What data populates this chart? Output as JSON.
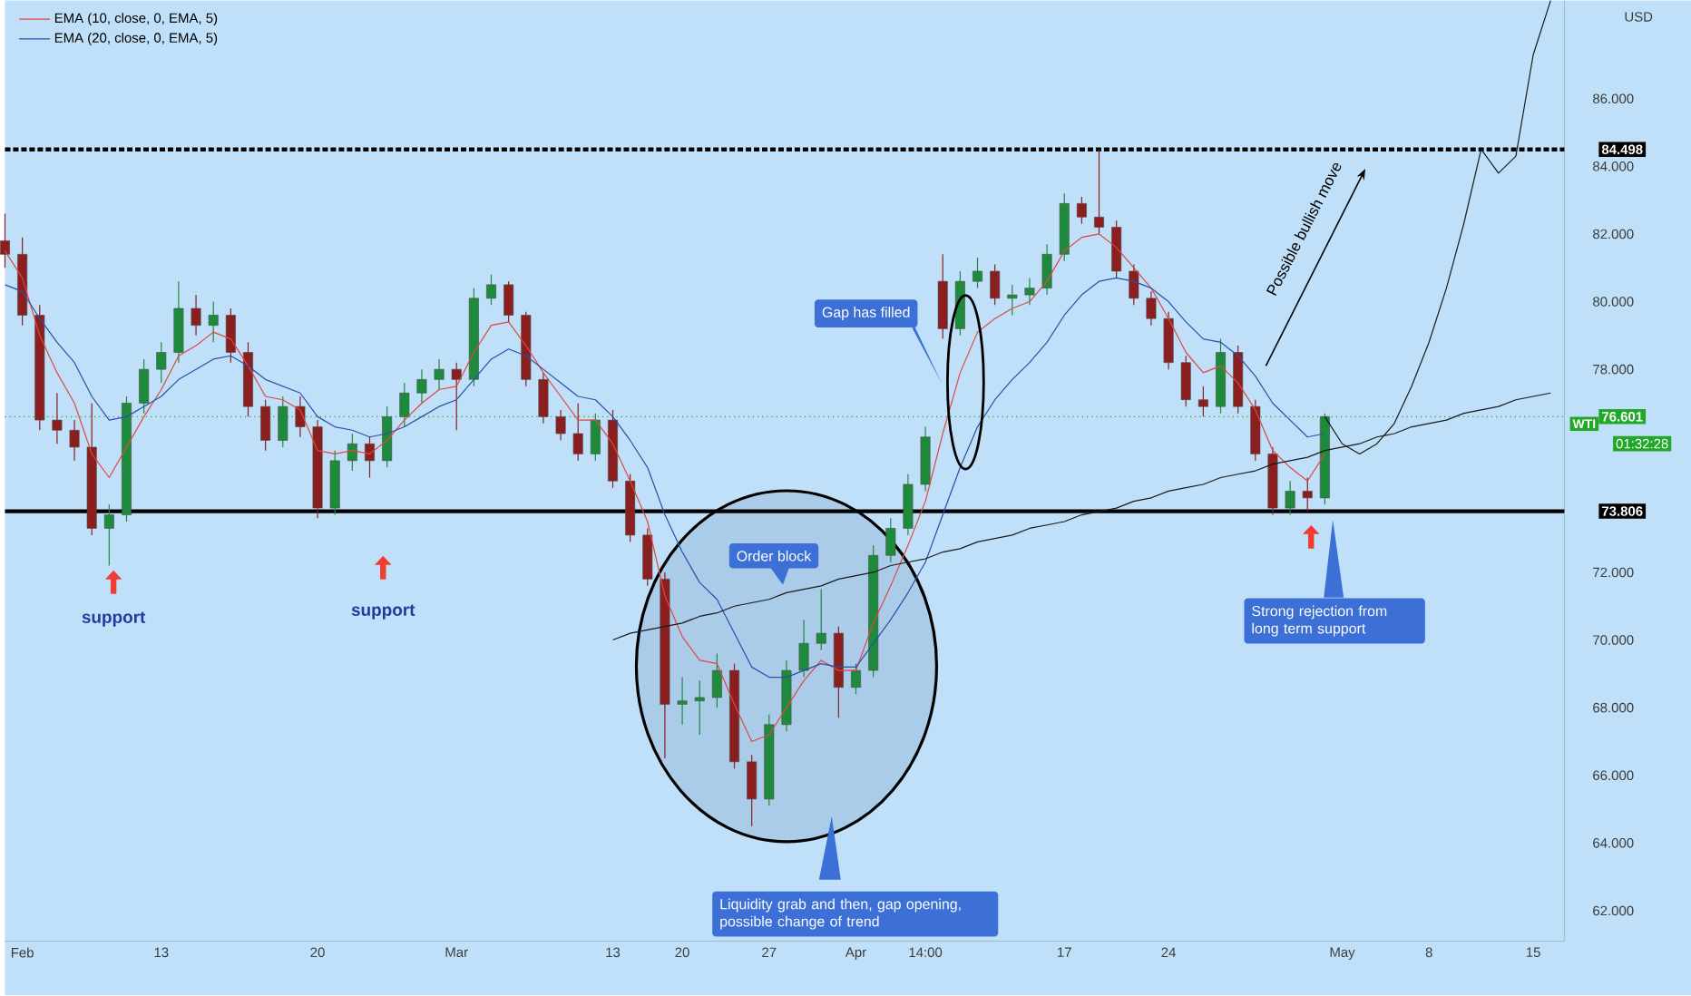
{
  "chart_data": {
    "type": "candlestick",
    "ylabel": "USD",
    "categories": [
      null,
      "Feb",
      null,
      null,
      null,
      null,
      null,
      null,
      null,
      "13",
      null,
      null,
      null,
      null,
      null,
      null,
      null,
      null,
      "20",
      null,
      null,
      null,
      null,
      null,
      null,
      null,
      "Mar",
      null,
      null,
      null,
      null,
      null,
      null,
      null,
      null,
      "13",
      null,
      null,
      null,
      "20",
      null,
      null,
      null,
      null,
      "27",
      null,
      null,
      null,
      null,
      "Apr",
      null,
      null,
      null,
      "14:00",
      null,
      null,
      null,
      null,
      null,
      null,
      null,
      "17",
      null,
      null,
      null,
      null,
      null,
      "24",
      null,
      null,
      null,
      null,
      null,
      null,
      null,
      null,
      null,
      "May",
      null,
      null,
      null,
      null,
      "8",
      null,
      null,
      null,
      null,
      null,
      "15",
      null
    ],
    "ylim": [
      61.1,
      88.9
    ],
    "yticks": [
      {
        "value": 62,
        "label": "62.000"
      },
      {
        "value": 64,
        "label": "64.000"
      },
      {
        "value": 66,
        "label": "66.000"
      },
      {
        "value": 68,
        "label": "68.000"
      },
      {
        "value": 70,
        "label": "70.000"
      },
      {
        "value": 72,
        "label": "72.000"
      },
      {
        "value": 78,
        "label": "78.000"
      },
      {
        "value": 80,
        "label": "80.000"
      },
      {
        "value": 82,
        "label": "82.000"
      },
      {
        "value": 84,
        "label": "84.000"
      },
      {
        "value": 86,
        "label": "86.000"
      }
    ],
    "legend": "top left",
    "series": [
      {
        "ohlc": [
          [
            81.8,
            82.6,
            81.0,
            81.4
          ],
          [
            81.4,
            81.9,
            79.3,
            79.6
          ],
          [
            79.6,
            79.9,
            76.2,
            76.5
          ],
          [
            76.5,
            77.3,
            75.8,
            76.2
          ],
          [
            76.2,
            76.5,
            75.3,
            75.7
          ],
          [
            75.7,
            77.0,
            73.1,
            73.3
          ],
          [
            73.3,
            74.0,
            72.2,
            73.7
          ],
          [
            73.7,
            77.2,
            73.5,
            77.0
          ],
          [
            77.0,
            78.3,
            76.7,
            78.0
          ],
          [
            78.0,
            78.8,
            77.6,
            78.5
          ],
          [
            78.5,
            80.6,
            78.2,
            79.8
          ],
          [
            79.8,
            80.2,
            79.0,
            79.3
          ],
          [
            79.3,
            80.0,
            78.8,
            79.6
          ],
          [
            79.6,
            79.8,
            78.2,
            78.5
          ],
          [
            78.5,
            78.8,
            76.6,
            76.9
          ],
          [
            76.9,
            77.1,
            75.6,
            75.9
          ],
          [
            75.9,
            77.2,
            75.7,
            76.9
          ],
          [
            76.9,
            77.2,
            76.0,
            76.3
          ],
          [
            76.3,
            76.5,
            73.6,
            73.9
          ],
          [
            73.9,
            75.6,
            73.7,
            75.3
          ],
          [
            75.3,
            76.1,
            75.0,
            75.8
          ],
          [
            75.8,
            76.0,
            74.8,
            75.3
          ],
          [
            75.3,
            76.9,
            75.1,
            76.6
          ],
          [
            76.6,
            77.6,
            76.3,
            77.3
          ],
          [
            77.3,
            78.0,
            77.0,
            77.7
          ],
          [
            77.7,
            78.3,
            77.4,
            78.0
          ],
          [
            78.0,
            78.2,
            76.2,
            77.7
          ],
          [
            77.7,
            80.4,
            77.5,
            80.1
          ],
          [
            80.1,
            80.8,
            79.9,
            80.5
          ],
          [
            80.5,
            80.6,
            79.4,
            79.6
          ],
          [
            79.6,
            79.7,
            77.5,
            77.7
          ],
          [
            77.7,
            77.9,
            76.4,
            76.6
          ],
          [
            76.6,
            76.8,
            75.9,
            76.1
          ],
          [
            76.1,
            77.0,
            75.3,
            75.5
          ],
          [
            75.5,
            76.7,
            75.3,
            76.5
          ],
          [
            76.5,
            76.8,
            74.5,
            74.7
          ],
          [
            74.7,
            74.9,
            72.9,
            73.1
          ],
          [
            73.1,
            73.3,
            71.6,
            71.8
          ],
          [
            71.8,
            72.0,
            66.5,
            68.1
          ],
          [
            68.1,
            68.9,
            67.5,
            68.2
          ],
          [
            68.2,
            68.8,
            67.2,
            68.3
          ],
          [
            68.3,
            69.6,
            68.0,
            69.1
          ],
          [
            69.1,
            69.3,
            66.2,
            66.4
          ],
          [
            66.4,
            66.6,
            64.5,
            65.3
          ],
          [
            65.3,
            67.8,
            65.1,
            67.5
          ],
          [
            67.5,
            69.4,
            67.3,
            69.1
          ],
          [
            69.1,
            70.6,
            68.9,
            69.9
          ],
          [
            69.9,
            71.5,
            69.7,
            70.2
          ],
          [
            70.2,
            70.4,
            67.7,
            68.6
          ],
          [
            68.6,
            69.3,
            68.4,
            69.1
          ],
          [
            69.1,
            72.8,
            68.9,
            72.5
          ],
          [
            72.5,
            73.6,
            72.3,
            73.3
          ],
          [
            73.3,
            74.9,
            73.1,
            74.6
          ],
          [
            74.6,
            76.3,
            74.4,
            76.0
          ],
          [
            80.6,
            81.4,
            78.9,
            79.2
          ],
          [
            79.2,
            80.9,
            79.0,
            80.6
          ],
          [
            80.6,
            81.3,
            80.4,
            80.9
          ],
          [
            80.9,
            81.1,
            79.9,
            80.1
          ],
          [
            80.1,
            80.5,
            79.6,
            80.2
          ],
          [
            80.2,
            80.7,
            79.9,
            80.4
          ],
          [
            80.4,
            81.7,
            80.2,
            81.4
          ],
          [
            81.4,
            83.2,
            81.2,
            82.9
          ],
          [
            82.9,
            83.1,
            82.3,
            82.5
          ],
          [
            82.5,
            84.5,
            82.0,
            82.2
          ],
          [
            82.2,
            82.4,
            80.7,
            80.9
          ],
          [
            80.9,
            81.1,
            79.9,
            80.1
          ],
          [
            80.1,
            80.3,
            79.3,
            79.5
          ],
          [
            79.5,
            79.7,
            78.0,
            78.2
          ],
          [
            78.2,
            78.4,
            76.9,
            77.1
          ],
          [
            77.1,
            77.5,
            76.6,
            76.9
          ],
          [
            76.9,
            78.9,
            76.7,
            78.5
          ],
          [
            78.5,
            78.7,
            76.7,
            76.9
          ],
          [
            76.9,
            77.1,
            75.3,
            75.5
          ],
          [
            75.5,
            75.7,
            73.7,
            73.9
          ],
          [
            73.9,
            74.7,
            73.7,
            74.4
          ],
          [
            74.4,
            74.8,
            73.8,
            74.2
          ],
          [
            74.2,
            76.7,
            74.0,
            76.601
          ],
          null,
          null,
          null,
          null,
          null,
          null,
          null,
          null,
          null,
          null,
          null,
          null,
          null
        ],
        "colors": [
          "#8b1e1e",
          "#8b1e1e",
          "#8b1e1e",
          "#8b1e1e",
          "#8b1e1e",
          "#8b1e1e",
          "#1e8a3c",
          "#1e8a3c",
          "#1e8a3c",
          "#1e8a3c",
          "#1e8a3c",
          "#8b1e1e",
          "#1e8a3c",
          "#8b1e1e",
          "#8b1e1e",
          "#8b1e1e",
          "#1e8a3c",
          "#8b1e1e",
          "#8b1e1e",
          "#1e8a3c",
          "#1e8a3c",
          "#8b1e1e",
          "#1e8a3c",
          "#1e8a3c",
          "#1e8a3c",
          "#1e8a3c",
          "#8b1e1e",
          "#1e8a3c",
          "#1e8a3c",
          "#8b1e1e",
          "#8b1e1e",
          "#8b1e1e",
          "#8b1e1e",
          "#8b1e1e",
          "#1e8a3c",
          "#8b1e1e",
          "#8b1e1e",
          "#8b1e1e",
          "#8b1e1e",
          "#1e8a3c",
          "#1e8a3c",
          "#1e8a3c",
          "#8b1e1e",
          "#8b1e1e",
          "#1e8a3c",
          "#1e8a3c",
          "#1e8a3c",
          "#1e8a3c",
          "#8b1e1e",
          "#1e8a3c",
          "#1e8a3c",
          "#1e8a3c",
          "#1e8a3c",
          "#1e8a3c",
          "#8b1e1e",
          "#1e8a3c",
          "#1e8a3c",
          "#8b1e1e",
          "#1e8a3c",
          "#1e8a3c",
          "#1e8a3c",
          "#1e8a3c",
          "#8b1e1e",
          "#8b1e1e",
          "#8b1e1e",
          "#8b1e1e",
          "#8b1e1e",
          "#8b1e1e",
          "#8b1e1e",
          "#8b1e1e",
          "#1e8a3c",
          "#8b1e1e",
          "#8b1e1e",
          "#8b1e1e",
          "#1e8a3c",
          "#8b1e1e",
          "#1e8a3c",
          null,
          null,
          null,
          null,
          null,
          null,
          null,
          null,
          null,
          null,
          null,
          null,
          null
        ]
      },
      {
        "type": "line",
        "name": "EMA (10, close, 0, EMA, 5)",
        "color": "#e0473f",
        "values": [
          81.5,
          80.7,
          79.0,
          77.9,
          77.0,
          75.5,
          74.8,
          75.7,
          76.6,
          77.4,
          78.4,
          78.7,
          79.1,
          78.9,
          78.1,
          77.2,
          77.1,
          76.8,
          75.6,
          75.5,
          75.6,
          75.5,
          75.9,
          76.5,
          77.0,
          77.4,
          77.5,
          78.5,
          79.3,
          79.4,
          78.7,
          77.9,
          77.2,
          76.5,
          76.5,
          75.8,
          74.7,
          73.5,
          71.3,
          70.1,
          69.4,
          69.3,
          68.1,
          67.0,
          67.2,
          68.0,
          68.8,
          69.4,
          69.1,
          69.1,
          70.5,
          71.6,
          72.8,
          74.1,
          76.1,
          77.9,
          79.1,
          79.5,
          79.8,
          80.0,
          80.6,
          81.5,
          81.9,
          82.0,
          81.6,
          81.0,
          80.4,
          79.5,
          78.5,
          77.9,
          78.1,
          77.6,
          76.8,
          75.6,
          75.1,
          74.7,
          75.5,
          null,
          null,
          null,
          null,
          null,
          null,
          null,
          null,
          null,
          null,
          null,
          null,
          null
        ]
      },
      {
        "type": "line",
        "name": "EMA (20, close, 0, EMA, 5)",
        "color": "#2a4fa8",
        "values": [
          80.5,
          80.3,
          79.5,
          78.8,
          78.2,
          77.2,
          76.5,
          76.6,
          76.9,
          77.2,
          77.7,
          78.0,
          78.3,
          78.4,
          78.1,
          77.7,
          77.5,
          77.3,
          76.6,
          76.3,
          76.2,
          76.0,
          76.1,
          76.3,
          76.6,
          76.9,
          77.1,
          77.7,
          78.3,
          78.6,
          78.4,
          78.0,
          77.6,
          77.2,
          77.1,
          76.6,
          75.9,
          75.1,
          73.7,
          72.6,
          71.7,
          71.2,
          70.2,
          69.2,
          68.9,
          68.9,
          69.1,
          69.3,
          69.2,
          69.2,
          69.9,
          70.6,
          71.4,
          72.3,
          73.7,
          75.1,
          76.3,
          77.1,
          77.7,
          78.2,
          78.8,
          79.6,
          80.2,
          80.6,
          80.7,
          80.6,
          80.4,
          80.0,
          79.4,
          78.9,
          78.8,
          78.4,
          77.8,
          77.0,
          76.5,
          76.0,
          76.1,
          null,
          null,
          null,
          null,
          null,
          null,
          null,
          null,
          null,
          null,
          null,
          null,
          null
        ]
      },
      {
        "type": "line",
        "color": "#1a1a1a",
        "values": [
          null,
          null,
          null,
          null,
          null,
          null,
          null,
          null,
          null,
          null,
          null,
          null,
          null,
          null,
          null,
          null,
          null,
          null,
          null,
          null,
          null,
          null,
          null,
          null,
          null,
          null,
          null,
          null,
          null,
          null,
          null,
          null,
          null,
          null,
          null,
          70.0,
          70.2,
          70.3,
          70.4,
          70.5,
          70.7,
          70.8,
          71.0,
          71.1,
          71.2,
          71.4,
          71.5,
          71.6,
          71.8,
          71.9,
          72.0,
          72.2,
          72.3,
          72.4,
          72.6,
          72.7,
          72.9,
          73.0,
          73.1,
          73.3,
          73.4,
          73.5,
          73.7,
          73.8,
          73.9,
          74.1,
          74.2,
          74.4,
          74.5,
          74.6,
          74.8,
          74.9,
          75.0,
          75.2,
          75.3,
          75.4,
          75.6,
          75.7,
          75.8,
          76.0,
          76.1,
          76.3,
          76.4,
          76.5,
          76.7,
          76.8,
          76.9,
          77.1,
          77.2,
          77.3
        ]
      },
      {
        "type": "line",
        "color": "#1a1a1a",
        "values": [
          null,
          null,
          null,
          null,
          null,
          null,
          null,
          null,
          null,
          null,
          null,
          null,
          null,
          null,
          null,
          null,
          null,
          null,
          null,
          null,
          null,
          null,
          null,
          null,
          null,
          null,
          null,
          null,
          null,
          null,
          null,
          null,
          null,
          null,
          null,
          null,
          null,
          null,
          null,
          null,
          null,
          null,
          null,
          null,
          null,
          null,
          null,
          null,
          null,
          null,
          null,
          null,
          null,
          null,
          null,
          null,
          null,
          null,
          null,
          null,
          null,
          null,
          null,
          null,
          null,
          null,
          null,
          null,
          null,
          null,
          null,
          null,
          null,
          null,
          null,
          null,
          76.6,
          75.8,
          75.5,
          75.8,
          76.4,
          77.5,
          78.8,
          80.4,
          82.3,
          84.5,
          83.8,
          84.3,
          87.3,
          88.9
        ]
      }
    ],
    "ref_lines": [
      {
        "axis": "y",
        "value": 84.498,
        "label": "84.498",
        "color": "#000000",
        "line_style": "dashed"
      },
      {
        "axis": "y",
        "value": 73.806,
        "label": "73.806",
        "color": "#000000",
        "line_style": "solid"
      },
      {
        "axis": "y",
        "value": 76.601,
        "label": "76.601",
        "color": "#22a829",
        "line_style": "dotted"
      }
    ],
    "annotations": [
      "support",
      "support",
      "Order block",
      "Gap has filled",
      "Liquidity grab and then, gap opening, possible change of trend",
      "Strong rejection from long term support",
      "Possible bullish move",
      "WTI",
      "01:32:28"
    ]
  }
}
